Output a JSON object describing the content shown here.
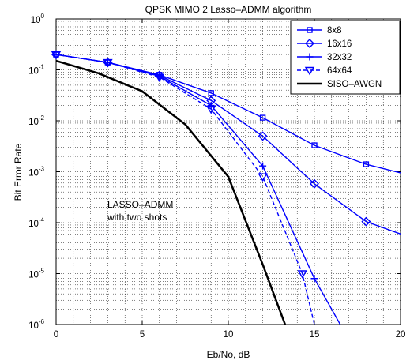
{
  "chart_data": {
    "type": "line",
    "title": "QPSK MIMO  2 Lasso–ADMM algorithm",
    "xlabel": "Eb/No, dB",
    "ylabel": "Bit Error Rate",
    "xlim": [
      0,
      20
    ],
    "ylim": [
      1e-06,
      1
    ],
    "yscale": "log",
    "grid": true,
    "legend_position": "top-right",
    "x_ticks": [
      "0",
      "5",
      "10",
      "15",
      "20"
    ],
    "y_ticks": [
      "-6",
      "-5",
      "-4",
      "-3",
      "-2",
      "-1",
      "0"
    ],
    "y_tick_base": "10",
    "annotation": [
      "LASSO–ADMM",
      "with two shots"
    ],
    "series": [
      {
        "name": "8x8",
        "marker": "square",
        "dash": "solid",
        "color": "#0000ff",
        "x": [
          0,
          3,
          6,
          9,
          12,
          15,
          18,
          20
        ],
        "y": [
          0.2,
          0.14,
          0.08,
          0.035,
          0.0115,
          0.0033,
          0.0014,
          0.00095
        ]
      },
      {
        "name": "16x16",
        "marker": "diamond",
        "dash": "solid",
        "color": "#0000ff",
        "x": [
          0,
          3,
          6,
          9,
          12,
          15,
          18,
          20
        ],
        "y": [
          0.2,
          0.14,
          0.078,
          0.025,
          0.005,
          0.00058,
          0.000105,
          6e-05
        ]
      },
      {
        "name": "32x32",
        "marker": "plus",
        "dash": "solid",
        "color": "#0000ff",
        "x": [
          0,
          3,
          6,
          9,
          12,
          15,
          16.5
        ],
        "y": [
          0.2,
          0.14,
          0.075,
          0.02,
          0.0013,
          8e-06,
          1e-06
        ]
      },
      {
        "name": "64x64",
        "marker": "triangle-down",
        "dash": "dashed",
        "color": "#0000ff",
        "x": [
          0,
          3,
          6,
          9,
          12,
          14.3,
          15
        ],
        "y": [
          0.2,
          0.14,
          0.072,
          0.017,
          0.0008,
          1e-05,
          1e-06
        ]
      },
      {
        "name": "SISO–AWGN",
        "marker": "none",
        "dash": "solid",
        "color": "#000000",
        "x": [
          0,
          2.5,
          5,
          7.5,
          10,
          12,
          13.3
        ],
        "y": [
          0.15,
          0.085,
          0.038,
          0.0085,
          0.0008,
          1.5e-05,
          1e-06
        ]
      }
    ]
  }
}
